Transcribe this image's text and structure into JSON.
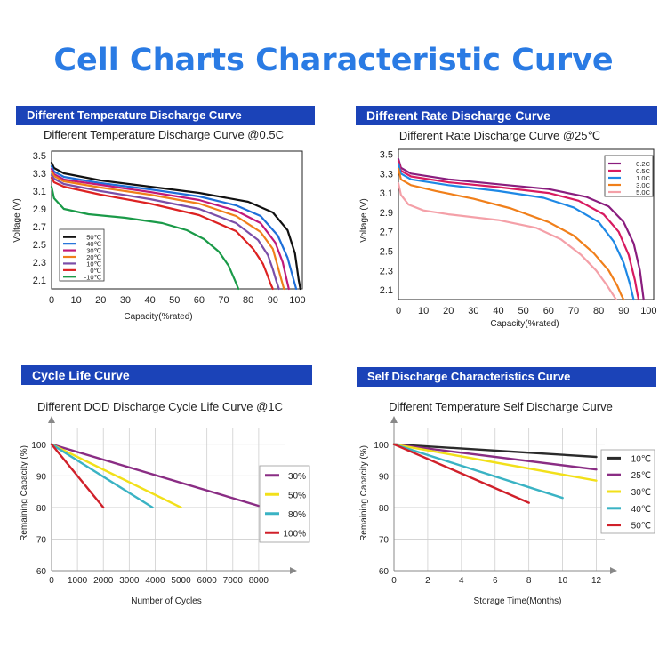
{
  "page_title": "Cell Charts Characteristic Curve",
  "chart_data": [
    {
      "type": "line",
      "header": "Different Temperature Discharge Curve",
      "title": "Different Temperature Discharge Curve @0.5C",
      "xlabel": "Capacity(%rated)",
      "ylabel": "Voltage (V)",
      "xlim": [
        0,
        102
      ],
      "ylim": [
        2.0,
        3.55
      ],
      "xticks": [
        "0",
        "10",
        "20",
        "30",
        "40",
        "50",
        "60",
        "70",
        "80",
        "90",
        "100"
      ],
      "yticks": [
        "3.5",
        "3.3",
        "3.1",
        "2.9",
        "2.7",
        "2.5",
        "2.3",
        "2.1"
      ],
      "legend_position": "left",
      "series": [
        {
          "name": "50℃",
          "color": "#111111",
          "x": [
            0,
            1,
            5,
            20,
            40,
            60,
            80,
            90,
            96,
            99,
            100.5,
            101.2
          ],
          "y": [
            3.42,
            3.36,
            3.3,
            3.22,
            3.15,
            3.08,
            2.98,
            2.86,
            2.66,
            2.4,
            2.1,
            2.0
          ]
        },
        {
          "name": "40℃",
          "color": "#1e6fd9",
          "x": [
            0,
            1,
            5,
            20,
            40,
            60,
            75,
            85,
            92,
            96,
            98,
            99.5
          ],
          "y": [
            3.38,
            3.32,
            3.26,
            3.19,
            3.12,
            3.04,
            2.94,
            2.82,
            2.6,
            2.35,
            2.15,
            2.0
          ]
        },
        {
          "name": "30℃",
          "color": "#c0197a",
          "x": [
            0,
            1,
            5,
            20,
            40,
            60,
            75,
            85,
            91,
            94,
            95.5,
            96.5
          ],
          "y": [
            3.35,
            3.29,
            3.23,
            3.17,
            3.09,
            3.0,
            2.88,
            2.74,
            2.52,
            2.3,
            2.12,
            2.0
          ]
        },
        {
          "name": "20℃",
          "color": "#f07f1a",
          "x": [
            0,
            1,
            5,
            20,
            40,
            60,
            75,
            85,
            90,
            92,
            93.5,
            94.5
          ],
          "y": [
            3.32,
            3.27,
            3.21,
            3.14,
            3.06,
            2.96,
            2.82,
            2.64,
            2.45,
            2.25,
            2.1,
            2.0
          ]
        },
        {
          "name": "10℃",
          "color": "#7b4ea8",
          "x": [
            0,
            1,
            5,
            20,
            40,
            60,
            75,
            84,
            88,
            90,
            91.5,
            92.5
          ],
          "y": [
            3.28,
            3.24,
            3.18,
            3.1,
            3.01,
            2.9,
            2.74,
            2.55,
            2.38,
            2.22,
            2.08,
            2.0
          ]
        },
        {
          "name": "0℃",
          "color": "#dd2222",
          "x": [
            0,
            1,
            5,
            20,
            40,
            60,
            75,
            82,
            86,
            88,
            89,
            90
          ],
          "y": [
            3.25,
            3.2,
            3.15,
            3.06,
            2.96,
            2.83,
            2.65,
            2.45,
            2.28,
            2.14,
            2.06,
            2.0
          ]
        },
        {
          "name": "-10℃",
          "color": "#1a9a48",
          "x": [
            0,
            1,
            5,
            15,
            30,
            45,
            55,
            62,
            68,
            72,
            74.5,
            76
          ],
          "y": [
            3.15,
            3.02,
            2.9,
            2.84,
            2.8,
            2.74,
            2.66,
            2.56,
            2.42,
            2.26,
            2.1,
            2.0
          ]
        }
      ]
    },
    {
      "type": "line",
      "header": "Different Rate Discharge Curve",
      "title": "Different Rate Discharge Curve @25℃",
      "xlabel": "Capacity(%rated)",
      "ylabel": "Voltage (V)",
      "xlim": [
        0,
        102
      ],
      "ylim": [
        2.0,
        3.55
      ],
      "xticks": [
        "0",
        "10",
        "20",
        "30",
        "40",
        "50",
        "60",
        "70",
        "80",
        "90",
        "100"
      ],
      "yticks": [
        "3.5",
        "3.3",
        "3.1",
        "2.9",
        "2.7",
        "2.5",
        "2.3",
        "2.1"
      ],
      "legend_position": "top-right",
      "series": [
        {
          "name": "0.2C",
          "color": "#8a1d7e",
          "x": [
            0,
            1,
            5,
            20,
            40,
            60,
            75,
            84,
            90,
            94,
            96.5,
            97.5,
            98
          ],
          "y": [
            3.45,
            3.36,
            3.3,
            3.24,
            3.19,
            3.14,
            3.06,
            2.96,
            2.8,
            2.58,
            2.3,
            2.1,
            2.0
          ]
        },
        {
          "name": "0.5C",
          "color": "#d81b60",
          "x": [
            0,
            1,
            5,
            20,
            40,
            60,
            72,
            82,
            88,
            92,
            94.5,
            95.5,
            96
          ],
          "y": [
            3.43,
            3.33,
            3.27,
            3.21,
            3.16,
            3.1,
            3.02,
            2.88,
            2.7,
            2.46,
            2.2,
            2.06,
            2.0
          ]
        },
        {
          "name": "1.0C",
          "color": "#1e88e5",
          "x": [
            0,
            1,
            5,
            20,
            40,
            58,
            70,
            80,
            86,
            90,
            92.5,
            93.5,
            94
          ],
          "y": [
            3.4,
            3.3,
            3.24,
            3.18,
            3.12,
            3.05,
            2.95,
            2.8,
            2.6,
            2.38,
            2.16,
            2.05,
            2.0
          ]
        },
        {
          "name": "3.0C",
          "color": "#f07f1a",
          "x": [
            0,
            1,
            5,
            15,
            30,
            45,
            60,
            70,
            78,
            84,
            87.5,
            89,
            90
          ],
          "y": [
            3.35,
            3.24,
            3.18,
            3.12,
            3.04,
            2.94,
            2.8,
            2.66,
            2.48,
            2.3,
            2.14,
            2.05,
            2.0
          ]
        },
        {
          "name": "5.0C",
          "color": "#f4a0a8",
          "x": [
            0,
            1,
            4,
            10,
            20,
            40,
            55,
            65,
            73,
            79,
            83,
            85.5,
            87
          ],
          "y": [
            3.2,
            3.08,
            2.98,
            2.92,
            2.88,
            2.82,
            2.74,
            2.62,
            2.46,
            2.3,
            2.16,
            2.06,
            2.0
          ]
        }
      ]
    },
    {
      "type": "line",
      "header": "Cycle Life Curve",
      "title": "Different DOD Discharge Cycle Life Curve @1C",
      "xlabel": "Number of Cycles",
      "ylabel": "Remaining Capacity (%)",
      "xlim": [
        0,
        9000
      ],
      "ylim": [
        60,
        105
      ],
      "xticks": [
        "0",
        "1000",
        "2000",
        "3000",
        "4000",
        "5000",
        "6000",
        "7000",
        "8000"
      ],
      "yticks": [
        "100",
        "90",
        "80",
        "70",
        "60"
      ],
      "legend_position": "right",
      "series": [
        {
          "name": "30%",
          "color": "#8a2d84",
          "x": [
            0,
            8000
          ],
          "y": [
            100,
            80.5
          ]
        },
        {
          "name": "50%",
          "color": "#f2e01a",
          "x": [
            0,
            5000
          ],
          "y": [
            100,
            80
          ]
        },
        {
          "name": "80%",
          "color": "#3ab3c4",
          "x": [
            0,
            3900
          ],
          "y": [
            100,
            80
          ]
        },
        {
          "name": "100%",
          "color": "#d0202a",
          "x": [
            0,
            2000
          ],
          "y": [
            100,
            80
          ]
        }
      ]
    },
    {
      "type": "line",
      "header": "Self Discharge Characteristics Curve",
      "title": "Different Temperature Self Discharge Curve",
      "xlabel": "Storage Time(Months)",
      "ylabel": "Remaining Capacity (%)",
      "xlim": [
        0,
        12.5
      ],
      "ylim": [
        60,
        105
      ],
      "xticks": [
        "0",
        "2",
        "4",
        "6",
        "8",
        "10",
        "12"
      ],
      "yticks": [
        "100",
        "90",
        "80",
        "70",
        "60"
      ],
      "legend_position": "right",
      "series": [
        {
          "name": "10℃",
          "color": "#2b2b2b",
          "x": [
            0,
            12
          ],
          "y": [
            100,
            96
          ]
        },
        {
          "name": "25℃",
          "color": "#8a2d84",
          "x": [
            0,
            12
          ],
          "y": [
            100,
            92
          ]
        },
        {
          "name": "30℃",
          "color": "#f2e01a",
          "x": [
            0,
            12
          ],
          "y": [
            100,
            88.5
          ]
        },
        {
          "name": "40℃",
          "color": "#3ab3c4",
          "x": [
            0,
            10
          ],
          "y": [
            100,
            83
          ]
        },
        {
          "name": "50℃",
          "color": "#d0202a",
          "x": [
            0,
            8
          ],
          "y": [
            100,
            81.5
          ]
        }
      ]
    }
  ]
}
